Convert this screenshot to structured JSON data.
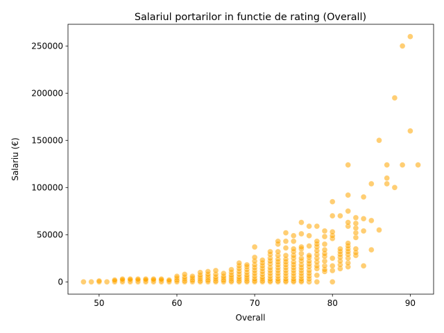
{
  "chart_data": {
    "type": "scatter",
    "title": "Salariul portarilor in functie de rating (Overall)",
    "xlabel": "Overall",
    "ylabel": "Salariu (€)",
    "xlim": [
      46,
      93
    ],
    "ylim": [
      -13000,
      273000
    ],
    "xticks": [
      50,
      60,
      70,
      80,
      90
    ],
    "yticks": [
      0,
      50000,
      100000,
      150000,
      200000,
      250000
    ],
    "grid": false,
    "color": "#FFA500",
    "series": [
      {
        "points": [
          [
            48,
            0
          ],
          [
            49,
            0
          ],
          [
            50,
            0
          ],
          [
            50,
            1000
          ],
          [
            51,
            0
          ],
          [
            52,
            0
          ],
          [
            52,
            1000
          ],
          [
            52,
            2000
          ],
          [
            53,
            0
          ],
          [
            53,
            1000
          ],
          [
            53,
            2000
          ],
          [
            53,
            3000
          ],
          [
            54,
            0
          ],
          [
            54,
            1000
          ],
          [
            54,
            2000
          ],
          [
            54,
            3000
          ],
          [
            55,
            0
          ],
          [
            55,
            1000
          ],
          [
            55,
            2000
          ],
          [
            55,
            3000
          ],
          [
            56,
            0
          ],
          [
            56,
            1000
          ],
          [
            56,
            2000
          ],
          [
            56,
            3000
          ],
          [
            57,
            0
          ],
          [
            57,
            1000
          ],
          [
            57,
            2000
          ],
          [
            57,
            3000
          ],
          [
            58,
            0
          ],
          [
            58,
            1000
          ],
          [
            58,
            2000
          ],
          [
            58,
            3000
          ],
          [
            59,
            0
          ],
          [
            59,
            1000
          ],
          [
            59,
            2000
          ],
          [
            60,
            0
          ],
          [
            60,
            1000
          ],
          [
            60,
            2000
          ],
          [
            60,
            4000
          ],
          [
            60,
            6000
          ],
          [
            61,
            0
          ],
          [
            61,
            1000
          ],
          [
            61,
            3000
          ],
          [
            61,
            5000
          ],
          [
            61,
            8000
          ],
          [
            62,
            0
          ],
          [
            62,
            1000
          ],
          [
            62,
            2000
          ],
          [
            62,
            4000
          ],
          [
            62,
            6000
          ],
          [
            63,
            0
          ],
          [
            63,
            1000
          ],
          [
            63,
            3000
          ],
          [
            63,
            5000
          ],
          [
            63,
            7000
          ],
          [
            63,
            10000
          ],
          [
            64,
            0
          ],
          [
            64,
            1000
          ],
          [
            64,
            2000
          ],
          [
            64,
            4000
          ],
          [
            64,
            6000
          ],
          [
            64,
            8000
          ],
          [
            64,
            11000
          ],
          [
            65,
            0
          ],
          [
            65,
            1000
          ],
          [
            65,
            3000
          ],
          [
            65,
            5000
          ],
          [
            65,
            8000
          ],
          [
            65,
            12000
          ],
          [
            66,
            0
          ],
          [
            66,
            1000
          ],
          [
            66,
            2000
          ],
          [
            66,
            4000
          ],
          [
            66,
            6000
          ],
          [
            66,
            9000
          ],
          [
            67,
            0
          ],
          [
            67,
            1000
          ],
          [
            67,
            3000
          ],
          [
            67,
            5000
          ],
          [
            67,
            7000
          ],
          [
            67,
            10000
          ],
          [
            67,
            13000
          ],
          [
            68,
            0
          ],
          [
            68,
            1000
          ],
          [
            68,
            3000
          ],
          [
            68,
            5000
          ],
          [
            68,
            8000
          ],
          [
            68,
            11000
          ],
          [
            68,
            14000
          ],
          [
            68,
            17000
          ],
          [
            68,
            20000
          ],
          [
            69,
            0
          ],
          [
            69,
            1000
          ],
          [
            69,
            3000
          ],
          [
            69,
            5000
          ],
          [
            69,
            7000
          ],
          [
            69,
            10000
          ],
          [
            69,
            13000
          ],
          [
            69,
            16000
          ],
          [
            69,
            18000
          ],
          [
            70,
            0
          ],
          [
            70,
            1000
          ],
          [
            70,
            3000
          ],
          [
            70,
            6000
          ],
          [
            70,
            9000
          ],
          [
            70,
            12000
          ],
          [
            70,
            15000
          ],
          [
            70,
            18000
          ],
          [
            70,
            22000
          ],
          [
            70,
            26000
          ],
          [
            70,
            37000
          ],
          [
            71,
            0
          ],
          [
            71,
            1000
          ],
          [
            71,
            3000
          ],
          [
            71,
            5000
          ],
          [
            71,
            8000
          ],
          [
            71,
            11000
          ],
          [
            71,
            14000
          ],
          [
            71,
            17000
          ],
          [
            71,
            20000
          ],
          [
            71,
            23000
          ],
          [
            72,
            0
          ],
          [
            72,
            1000
          ],
          [
            72,
            3000
          ],
          [
            72,
            6000
          ],
          [
            72,
            9000
          ],
          [
            72,
            12000
          ],
          [
            72,
            15000
          ],
          [
            72,
            19000
          ],
          [
            72,
            22000
          ],
          [
            72,
            25000
          ],
          [
            72,
            29000
          ],
          [
            72,
            32000
          ],
          [
            73,
            0
          ],
          [
            73,
            1000
          ],
          [
            73,
            3000
          ],
          [
            73,
            6000
          ],
          [
            73,
            9000
          ],
          [
            73,
            12000
          ],
          [
            73,
            15000
          ],
          [
            73,
            18000
          ],
          [
            73,
            21000
          ],
          [
            73,
            24000
          ],
          [
            73,
            28000
          ],
          [
            73,
            32000
          ],
          [
            73,
            40000
          ],
          [
            73,
            43000
          ],
          [
            74,
            0
          ],
          [
            74,
            1000
          ],
          [
            74,
            3000
          ],
          [
            74,
            6000
          ],
          [
            74,
            9000
          ],
          [
            74,
            12000
          ],
          [
            74,
            15000
          ],
          [
            74,
            18000
          ],
          [
            74,
            21000
          ],
          [
            74,
            24000
          ],
          [
            74,
            28000
          ],
          [
            74,
            36000
          ],
          [
            74,
            43000
          ],
          [
            74,
            52000
          ],
          [
            75,
            0
          ],
          [
            75,
            1000
          ],
          [
            75,
            3000
          ],
          [
            75,
            6000
          ],
          [
            75,
            9000
          ],
          [
            75,
            12000
          ],
          [
            75,
            15000
          ],
          [
            75,
            18000
          ],
          [
            75,
            21000
          ],
          [
            75,
            25000
          ],
          [
            75,
            28000
          ],
          [
            75,
            32000
          ],
          [
            75,
            35000
          ],
          [
            75,
            43000
          ],
          [
            75,
            49000
          ],
          [
            76,
            0
          ],
          [
            76,
            1000
          ],
          [
            76,
            3000
          ],
          [
            76,
            6000
          ],
          [
            76,
            9000
          ],
          [
            76,
            12000
          ],
          [
            76,
            15000
          ],
          [
            76,
            18000
          ],
          [
            76,
            22000
          ],
          [
            76,
            25000
          ],
          [
            76,
            30000
          ],
          [
            76,
            35000
          ],
          [
            76,
            37000
          ],
          [
            76,
            51000
          ],
          [
            76,
            63000
          ],
          [
            77,
            0
          ],
          [
            77,
            3000
          ],
          [
            77,
            6000
          ],
          [
            77,
            9000
          ],
          [
            77,
            12000
          ],
          [
            77,
            16000
          ],
          [
            77,
            19000
          ],
          [
            77,
            22000
          ],
          [
            77,
            26000
          ],
          [
            77,
            28000
          ],
          [
            77,
            38000
          ],
          [
            77,
            49000
          ],
          [
            77,
            59000
          ],
          [
            78,
            0
          ],
          [
            78,
            7000
          ],
          [
            78,
            14000
          ],
          [
            78,
            17000
          ],
          [
            78,
            21000
          ],
          [
            78,
            25000
          ],
          [
            78,
            29000
          ],
          [
            78,
            33000
          ],
          [
            78,
            37000
          ],
          [
            78,
            40000
          ],
          [
            78,
            43000
          ],
          [
            78,
            59000
          ],
          [
            79,
            11000
          ],
          [
            79,
            13000
          ],
          [
            79,
            17000
          ],
          [
            79,
            22000
          ],
          [
            79,
            27000
          ],
          [
            79,
            30000
          ],
          [
            79,
            34000
          ],
          [
            79,
            40000
          ],
          [
            79,
            48000
          ],
          [
            79,
            54000
          ],
          [
            80,
            0
          ],
          [
            80,
            12000
          ],
          [
            80,
            17000
          ],
          [
            80,
            25000
          ],
          [
            80,
            46000
          ],
          [
            80,
            49000
          ],
          [
            80,
            53000
          ],
          [
            80,
            70000
          ],
          [
            80,
            85000
          ],
          [
            81,
            14000
          ],
          [
            81,
            18000
          ],
          [
            81,
            22000
          ],
          [
            81,
            26000
          ],
          [
            81,
            29000
          ],
          [
            81,
            32000
          ],
          [
            81,
            35000
          ],
          [
            81,
            70000
          ],
          [
            82,
            16000
          ],
          [
            82,
            20000
          ],
          [
            82,
            25000
          ],
          [
            82,
            29000
          ],
          [
            82,
            32000
          ],
          [
            82,
            35000
          ],
          [
            82,
            38000
          ],
          [
            82,
            41000
          ],
          [
            82,
            59000
          ],
          [
            82,
            63000
          ],
          [
            82,
            75000
          ],
          [
            82,
            92000
          ],
          [
            82,
            124000
          ],
          [
            83,
            28000
          ],
          [
            83,
            31000
          ],
          [
            83,
            35000
          ],
          [
            83,
            47000
          ],
          [
            83,
            52000
          ],
          [
            83,
            57000
          ],
          [
            83,
            62000
          ],
          [
            83,
            68000
          ],
          [
            84,
            17000
          ],
          [
            84,
            54000
          ],
          [
            84,
            67000
          ],
          [
            84,
            90000
          ],
          [
            85,
            34000
          ],
          [
            85,
            65000
          ],
          [
            85,
            104000
          ],
          [
            86,
            55000
          ],
          [
            86,
            150000
          ],
          [
            87,
            104000
          ],
          [
            87,
            110000
          ],
          [
            87,
            124000
          ],
          [
            88,
            100000
          ],
          [
            88,
            195000
          ],
          [
            89,
            124000
          ],
          [
            89,
            250000
          ],
          [
            90,
            160000
          ],
          [
            90,
            260000
          ],
          [
            91,
            124000
          ]
        ]
      }
    ]
  }
}
